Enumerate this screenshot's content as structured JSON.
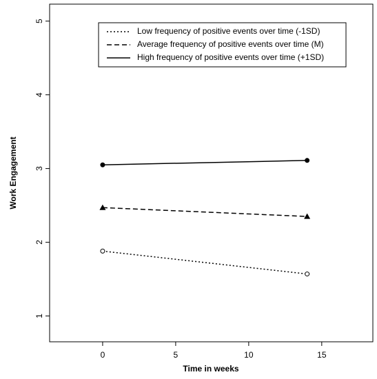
{
  "chart_data": {
    "type": "line",
    "xlabel": "Time in weeks",
    "ylabel": "Work Engagement",
    "x": [
      0,
      14
    ],
    "series": [
      {
        "name": "Low frequency of positive events over time (-1SD)",
        "color": "#000000",
        "linestyle": "dotted",
        "marker": "open-circle",
        "values": [
          1.88,
          1.57
        ]
      },
      {
        "name": "Average frequency of positive events over time (M)",
        "color": "#000000",
        "linestyle": "dashed",
        "marker": "triangle",
        "values": [
          2.47,
          2.35
        ]
      },
      {
        "name": "High frequency of positive events over time (+1SD)",
        "color": "#000000",
        "linestyle": "solid",
        "marker": "filled-circle",
        "values": [
          3.05,
          3.11
        ]
      }
    ],
    "xlim": [
      -3.63,
      18.5
    ],
    "xticks": [
      0,
      5,
      10,
      15
    ],
    "ylim": [
      0.65,
      5.23
    ],
    "yticks": [
      1,
      2,
      3,
      4,
      5
    ],
    "legend": "top-right"
  }
}
